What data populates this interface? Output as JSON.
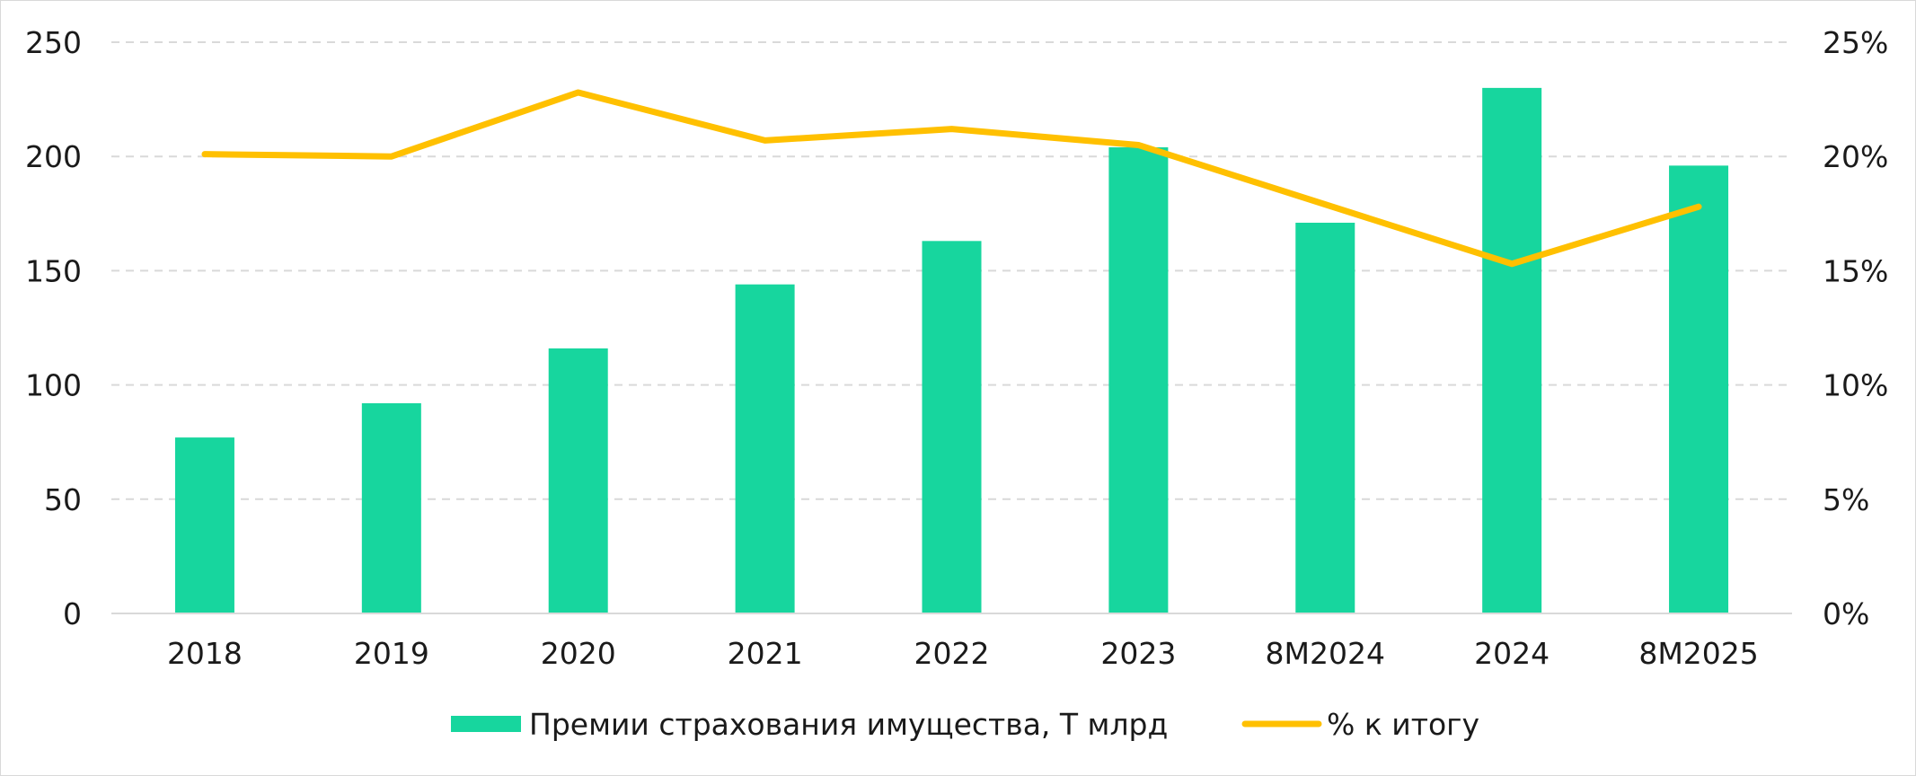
{
  "chart_data": {
    "type": "bar",
    "categories": [
      "2018",
      "2019",
      "2020",
      "2021",
      "2022",
      "2023",
      "8M2024",
      "2024",
      "8M2025"
    ],
    "series": [
      {
        "name": "Премии страхования имущества, Т млрд",
        "type": "bar",
        "axis": "left",
        "color": "#17d69e",
        "values": [
          77,
          92,
          116,
          144,
          163,
          204,
          171,
          230,
          196
        ]
      },
      {
        "name": "% к итогу",
        "type": "line",
        "axis": "right",
        "color": "#ffc000",
        "values": [
          20.1,
          20.0,
          22.8,
          20.7,
          21.2,
          20.5,
          17.9,
          15.3,
          17.8
        ]
      }
    ],
    "y_left": {
      "min": 0,
      "max": 250,
      "ticks": [
        "0",
        "50",
        "100",
        "150",
        "200",
        "250"
      ]
    },
    "y_right": {
      "min": 0,
      "max": 25,
      "ticks": [
        "0%",
        "5%",
        "10%",
        "15%",
        "20%",
        "25%"
      ]
    },
    "grid": "horizontal-dashed",
    "legend_position": "bottom-center"
  }
}
